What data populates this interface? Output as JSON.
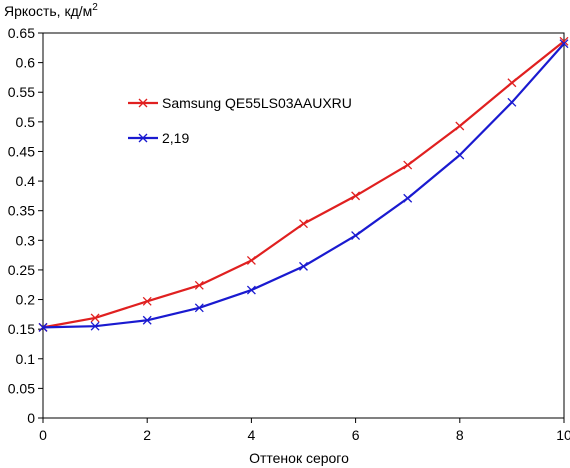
{
  "chart_data": {
    "type": "line",
    "ylabel": "Яркость, кд/м",
    "ylabel_superscript": "2",
    "xlabel": "Оттенок серого",
    "xlim": [
      0,
      10
    ],
    "ylim": [
      0,
      0.65
    ],
    "xticks": [
      0,
      2,
      4,
      6,
      8,
      10
    ],
    "yticks": [
      0,
      0.05,
      0.1,
      0.15,
      0.2,
      0.25,
      0.3,
      0.35,
      0.4,
      0.45,
      0.5,
      0.55,
      0.6,
      0.65
    ],
    "grid": false,
    "legend_position": "upper-left-inside",
    "x": [
      0,
      1,
      2,
      3,
      4,
      5,
      6,
      7,
      8,
      9,
      10
    ],
    "series": [
      {
        "name": "Samsung QE55LS03AAUXRU",
        "color": "#e02020",
        "marker": "x",
        "values": [
          0.153,
          0.169,
          0.197,
          0.224,
          0.266,
          0.328,
          0.375,
          0.427,
          0.493,
          0.566,
          0.636
        ]
      },
      {
        "name": "2,19",
        "color": "#1a1ad0",
        "marker": "x",
        "values": [
          0.153,
          0.155,
          0.165,
          0.186,
          0.216,
          0.256,
          0.308,
          0.371,
          0.444,
          0.533,
          0.632
        ]
      }
    ]
  }
}
